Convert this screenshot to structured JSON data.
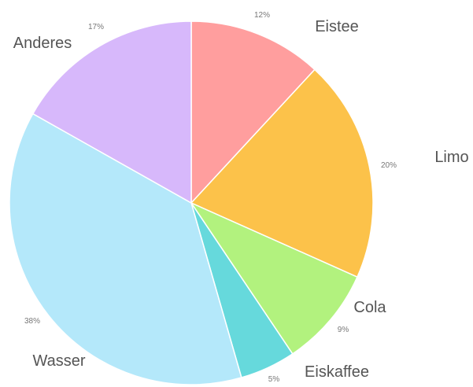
{
  "chart_data": {
    "type": "pie",
    "title": "",
    "slices": [
      {
        "label": "Eistee",
        "value": 12,
        "pct_label": "12%",
        "color": "#ff9e9e"
      },
      {
        "label": "Limo",
        "value": 20,
        "pct_label": "20%",
        "color": "#fcc24a"
      },
      {
        "label": "Cola",
        "value": 9,
        "pct_label": "9%",
        "color": "#b2f27e"
      },
      {
        "label": "Eiskaffee",
        "value": 5,
        "pct_label": "5%",
        "color": "#66d9dc"
      },
      {
        "label": "Wasser",
        "value": 38,
        "pct_label": "38%",
        "color": "#b4e8fa"
      },
      {
        "label": "Anderes",
        "value": 17,
        "pct_label": "17%",
        "color": "#d7b8fb"
      }
    ],
    "legend": "none"
  }
}
